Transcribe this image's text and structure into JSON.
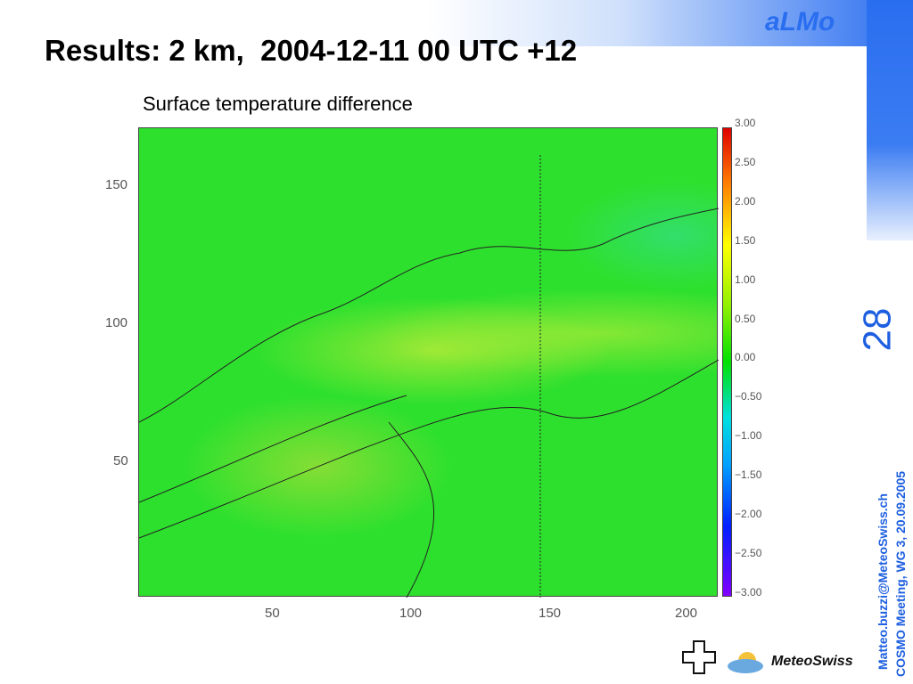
{
  "header": {
    "title": "Results: 2 km,  2004-12-11 00 UTC +12",
    "brand": "aLMo",
    "slide_number": "28"
  },
  "figure": {
    "title": "Surface temperature difference",
    "x_ticks": [
      "50",
      "100",
      "150",
      "200"
    ],
    "y_ticks": [
      "150",
      "100",
      "50"
    ],
    "colorbar_ticks": [
      "3.00",
      "2.50",
      "2.00",
      "1.50",
      "1.00",
      "0.50",
      "0.00",
      "−0.50",
      "−1.00",
      "−1.50",
      "−2.00",
      "−2.50",
      "−3.00"
    ]
  },
  "footer": {
    "email": "Matteo.buzzi@MeteoSwiss.ch",
    "meeting": "COSMO Meeting, WG 3, 20.09.2005",
    "logo": "MeteoSwiss"
  }
}
